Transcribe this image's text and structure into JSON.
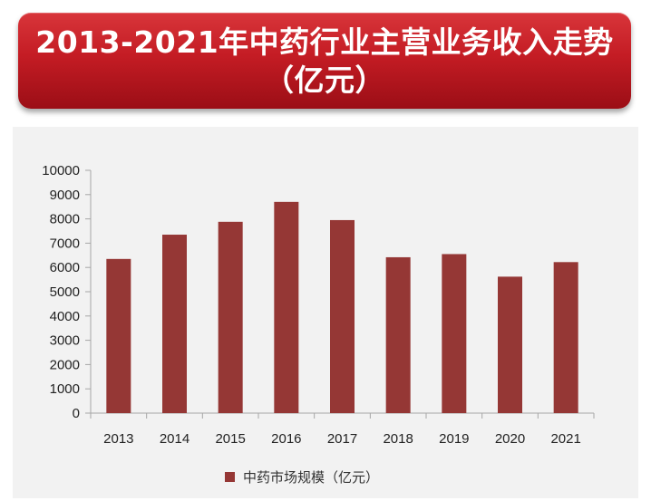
{
  "title": {
    "line1": "2013-2021年中药行业主营业务收入走势",
    "line2": "（亿元）"
  },
  "colors": {
    "bar": "#953735",
    "banner": "#c41c24",
    "panel": "#f2f2f2",
    "axis": "#a6a6a6"
  },
  "chart_data": {
    "type": "bar",
    "categories": [
      "2013",
      "2014",
      "2015",
      "2016",
      "2017",
      "2018",
      "2019",
      "2020",
      "2021"
    ],
    "series": [
      {
        "name": "中药市场规模（亿元）",
        "values": [
          6350,
          7350,
          7880,
          8700,
          7950,
          6420,
          6550,
          5620,
          6220
        ]
      }
    ],
    "ylim": [
      0,
      10000
    ],
    "yticks": [
      "0",
      "1000",
      "2000",
      "3000",
      "4000",
      "5000",
      "6000",
      "7000",
      "8000",
      "9000",
      "10000"
    ],
    "grid": false,
    "legend_position": "bottom"
  },
  "legend": {
    "label": "中药市场规模（亿元）"
  }
}
